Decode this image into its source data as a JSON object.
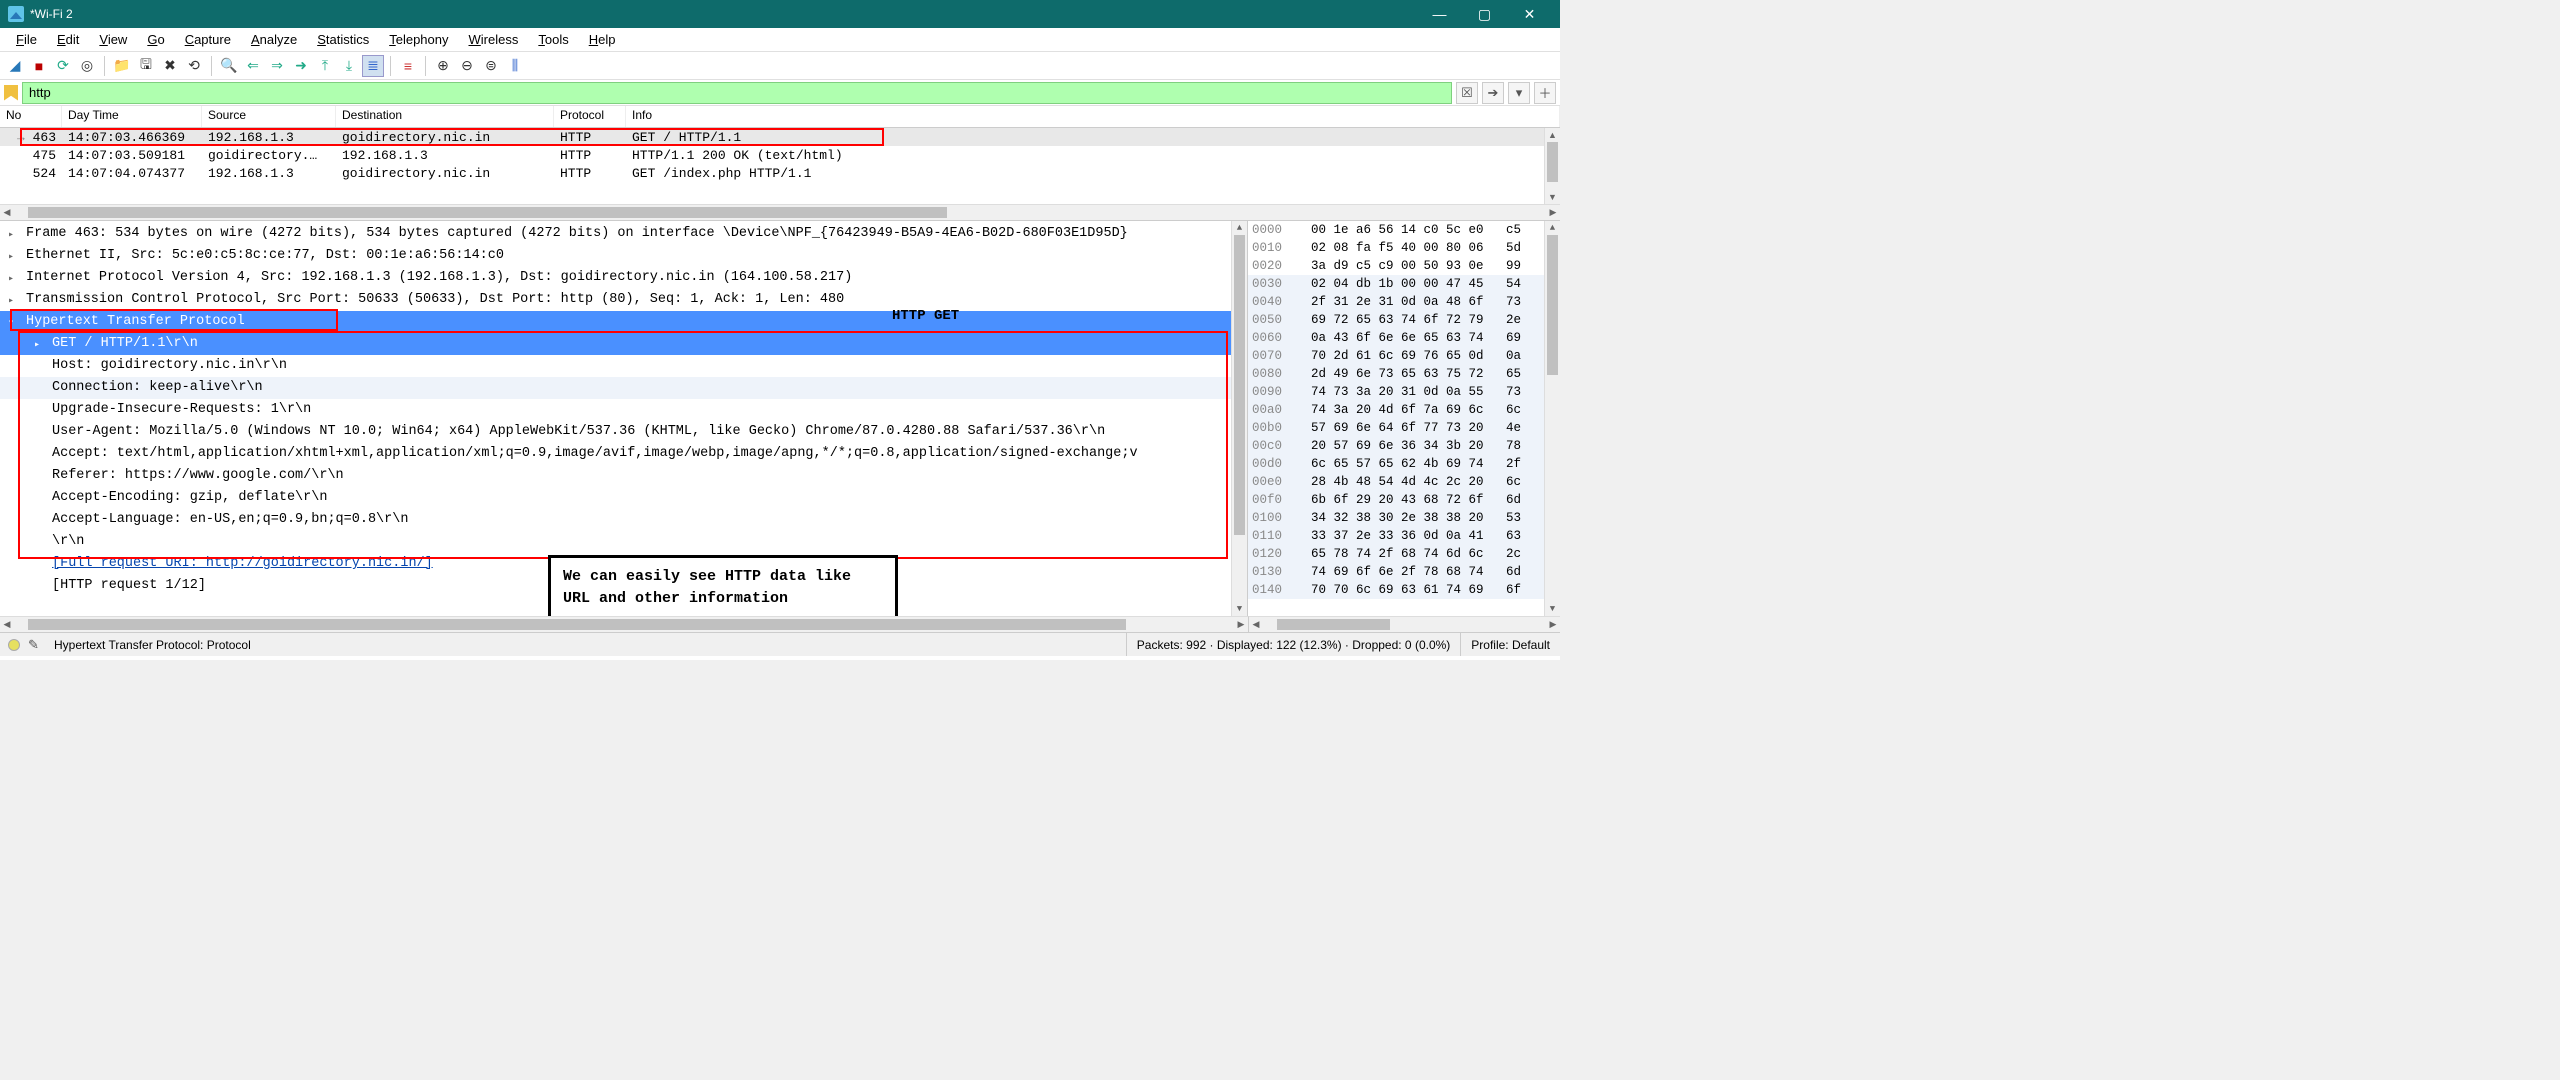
{
  "window": {
    "title": "*Wi-Fi 2"
  },
  "menu": {
    "items": [
      {
        "label": "File",
        "u": "F"
      },
      {
        "label": "Edit",
        "u": "E"
      },
      {
        "label": "View",
        "u": "V"
      },
      {
        "label": "Go",
        "u": "G"
      },
      {
        "label": "Capture",
        "u": "C"
      },
      {
        "label": "Analyze",
        "u": "A"
      },
      {
        "label": "Statistics",
        "u": "S"
      },
      {
        "label": "Telephony",
        "u": "T"
      },
      {
        "label": "Wireless",
        "u": "W"
      },
      {
        "label": "Tools",
        "u": "T"
      },
      {
        "label": "Help",
        "u": "H"
      }
    ]
  },
  "filter": {
    "value": "http"
  },
  "columns": {
    "no": "No",
    "time": "Day Time",
    "src": "Source",
    "dst": "Destination",
    "proto": "Protocol",
    "info": "Info"
  },
  "packets": [
    {
      "no": "463",
      "time": "14:07:03.466369",
      "src": "192.168.1.3",
      "dst": "goidirectory.nic.in",
      "proto": "HTTP",
      "info": "GET / HTTP/1.1",
      "sel": true
    },
    {
      "no": "475",
      "time": "14:07:03.509181",
      "src": "goidirectory.…",
      "dst": "192.168.1.3",
      "proto": "HTTP",
      "info": "HTTP/1.1 200 OK   (text/html)"
    },
    {
      "no": "524",
      "time": "14:07:04.074377",
      "src": "192.168.1.3",
      "dst": "goidirectory.nic.in",
      "proto": "HTTP",
      "info": "GET /index.php HTTP/1.1"
    }
  ],
  "details": {
    "frame": "Frame 463: 534 bytes on wire (4272 bits), 534 bytes captured (4272 bits) on interface \\Device\\NPF_{76423949-B5A9-4EA6-B02D-680F03E1D95D}",
    "eth": "Ethernet II, Src: 5c:e0:c5:8c:ce:77, Dst: 00:1e:a6:56:14:c0",
    "ip": "Internet Protocol Version 4, Src: 192.168.1.3 (192.168.1.3), Dst: goidirectory.nic.in (164.100.58.217)",
    "tcp": "Transmission Control Protocol, Src Port: 50633 (50633), Dst Port: http (80), Seq: 1, Ack: 1, Len: 480",
    "http_hdr": "Hypertext Transfer Protocol",
    "http_get_label": "HTTP GET",
    "http": {
      "getline": "GET / HTTP/1.1\\r\\n",
      "host": "Host: goidirectory.nic.in\\r\\n",
      "conn": "Connection: keep-alive\\r\\n",
      "upgrade": "Upgrade-Insecure-Requests: 1\\r\\n",
      "ua": "User-Agent: Mozilla/5.0 (Windows NT 10.0; Win64; x64) AppleWebKit/537.36 (KHTML, like Gecko) Chrome/87.0.4280.88 Safari/537.36\\r\\n",
      "accept": "Accept: text/html,application/xhtml+xml,application/xml;q=0.9,image/avif,image/webp,image/apng,*/*;q=0.8,application/signed-exchange;v",
      "referer": "Referer: https://www.google.com/\\r\\n",
      "acc_enc": "Accept-Encoding: gzip, deflate\\r\\n",
      "acc_lang": "Accept-Language: en-US,en;q=0.9,bn;q=0.8\\r\\n",
      "crlf": "\\r\\n",
      "full_uri": "[Full request URI: http://goidirectory.nic.in/]",
      "req_num": "[HTTP request 1/12]"
    },
    "callout": "We can easily see HTTP data like URL and other information"
  },
  "hex": [
    {
      "off": "0000",
      "b": "00 1e a6 56 14 c0 5c e0   c5"
    },
    {
      "off": "0010",
      "b": "02 08 fa f5 40 00 80 06   5d"
    },
    {
      "off": "0020",
      "b": "3a d9 c5 c9 00 50 93 0e   99"
    },
    {
      "off": "0030",
      "b": "02 04 db 1b 00 00 47 45   54"
    },
    {
      "off": "0040",
      "b": "2f 31 2e 31 0d 0a 48 6f   73"
    },
    {
      "off": "0050",
      "b": "69 72 65 63 74 6f 72 79   2e"
    },
    {
      "off": "0060",
      "b": "0a 43 6f 6e 6e 65 63 74   69"
    },
    {
      "off": "0070",
      "b": "70 2d 61 6c 69 76 65 0d   0a"
    },
    {
      "off": "0080",
      "b": "2d 49 6e 73 65 63 75 72   65"
    },
    {
      "off": "0090",
      "b": "74 73 3a 20 31 0d 0a 55   73"
    },
    {
      "off": "00a0",
      "b": "74 3a 20 4d 6f 7a 69 6c   6c"
    },
    {
      "off": "00b0",
      "b": "57 69 6e 64 6f 77 73 20   4e"
    },
    {
      "off": "00c0",
      "b": "20 57 69 6e 36 34 3b 20   78"
    },
    {
      "off": "00d0",
      "b": "6c 65 57 65 62 4b 69 74   2f"
    },
    {
      "off": "00e0",
      "b": "28 4b 48 54 4d 4c 2c 20   6c"
    },
    {
      "off": "00f0",
      "b": "6b 6f 29 20 43 68 72 6f   6d"
    },
    {
      "off": "0100",
      "b": "34 32 38 30 2e 38 38 20   53"
    },
    {
      "off": "0110",
      "b": "33 37 2e 33 36 0d 0a 41   63"
    },
    {
      "off": "0120",
      "b": "65 78 74 2f 68 74 6d 6c   2c"
    },
    {
      "off": "0130",
      "b": "74 69 6f 6e 2f 78 68 74   6d"
    },
    {
      "off": "0140",
      "b": "70 70 6c 69 63 61 74 69   6f"
    }
  ],
  "status": {
    "left": "Hypertext Transfer Protocol: Protocol",
    "packets": "Packets: 992 · Displayed: 122 (12.3%) · Dropped: 0 (0.0%)",
    "profile": "Profile: Default"
  },
  "colors": {
    "titlebar": "#0e6b6b",
    "filter_ok": "#afffaf",
    "selrow": "#4a90ff",
    "redbox": "#ff0000"
  }
}
